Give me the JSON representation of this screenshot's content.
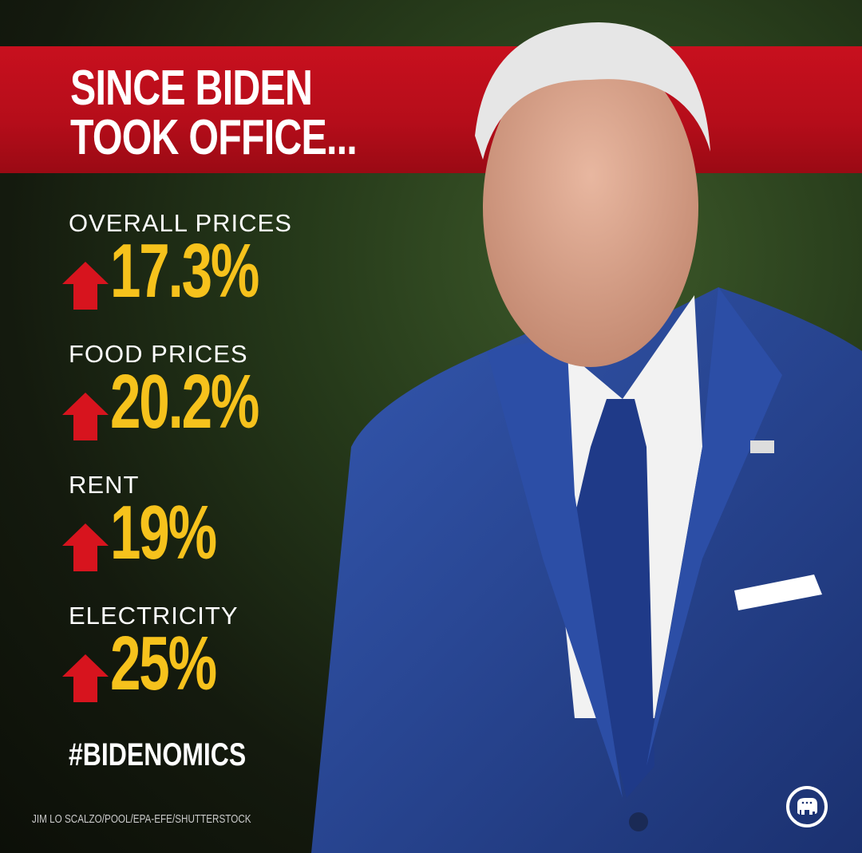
{
  "headline": [
    "SINCE BIDEN",
    "TOOK OFFICE..."
  ],
  "stats": [
    {
      "label": "OVERALL PRICES",
      "value": "17.3%",
      "direction": "up"
    },
    {
      "label": "FOOD PRICES",
      "value": "20.2%",
      "direction": "up"
    },
    {
      "label": "RENT",
      "value": "19%",
      "direction": "up"
    },
    {
      "label": "ELECTRICITY",
      "value": "25%",
      "direction": "up"
    }
  ],
  "hashtag": "#BIDENOMICS",
  "photo_credit": "JIM LO SCALZO/POOL/EPA-EFE/SHUTTERSTOCK",
  "colors": {
    "banner": "#c8101e",
    "value": "#f6c21c",
    "arrow": "#d7141e",
    "suit": "#2a4a9a"
  },
  "icons": {
    "arrow": "arrow-up-icon",
    "logo": "gop-elephant-logo"
  }
}
